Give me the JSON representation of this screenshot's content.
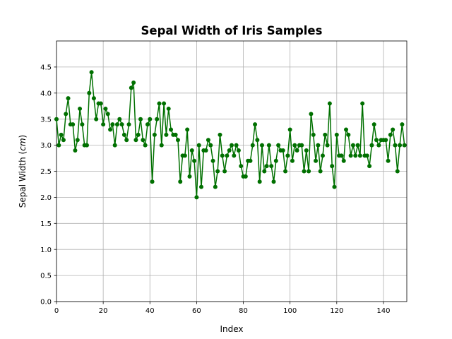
{
  "chart_data": {
    "type": "line",
    "title": "Sepal Width of Iris Samples",
    "xlabel": "Index",
    "ylabel": "Sepal Width (",
    "ylabel_unit": "cm",
    "ylabel_suffix": ")",
    "xlim": [
      0,
      150
    ],
    "ylim": [
      0,
      5.0
    ],
    "x_ticks": [
      0,
      20,
      40,
      60,
      80,
      100,
      120,
      140
    ],
    "x_tick_labels": [
      "0",
      "20",
      "40",
      "60",
      "80",
      "100",
      "120",
      "140"
    ],
    "y_ticks": [
      0.0,
      0.5,
      1.0,
      1.5,
      2.0,
      2.5,
      3.0,
      3.5,
      4.0,
      4.5
    ],
    "y_tick_labels": [
      "0.0",
      "0.5",
      "1.0",
      "1.5",
      "2.0",
      "2.5",
      "3.0",
      "3.5",
      "4.0",
      "4.5"
    ],
    "grid": true,
    "marker": "circle",
    "color": "#007000",
    "series": [
      {
        "values": [
          3.5,
          3.0,
          3.2,
          3.1,
          3.6,
          3.9,
          3.4,
          3.4,
          2.9,
          3.1,
          3.7,
          3.4,
          3.0,
          3.0,
          4.0,
          4.4,
          3.9,
          3.5,
          3.8,
          3.8,
          3.4,
          3.7,
          3.6,
          3.3,
          3.4,
          3.0,
          3.4,
          3.5,
          3.4,
          3.2,
          3.1,
          3.4,
          4.1,
          4.2,
          3.1,
          3.2,
          3.5,
          3.1,
          3.0,
          3.4,
          3.5,
          2.3,
          3.2,
          3.5,
          3.8,
          3.0,
          3.8,
          3.2,
          3.7,
          3.3,
          3.2,
          3.2,
          3.1,
          2.3,
          2.8,
          2.8,
          3.3,
          2.4,
          2.9,
          2.7,
          2.0,
          3.0,
          2.2,
          2.9,
          2.9,
          3.1,
          3.0,
          2.7,
          2.2,
          2.5,
          3.2,
          2.8,
          2.5,
          2.8,
          2.9,
          3.0,
          2.8,
          3.0,
          2.9,
          2.6,
          2.4,
          2.4,
          2.7,
          2.7,
          3.0,
          3.4,
          3.1,
          2.3,
          3.0,
          2.5,
          2.6,
          3.0,
          2.6,
          2.3,
          2.7,
          3.0,
          2.9,
          2.9,
          2.5,
          2.8,
          3.3,
          2.7,
          3.0,
          2.9,
          3.0,
          3.0,
          2.5,
          2.9,
          2.5,
          3.6,
          3.2,
          2.7,
          3.0,
          2.5,
          2.8,
          3.2,
          3.0,
          3.8,
          2.6,
          2.2,
          3.2,
          2.8,
          2.8,
          2.7,
          3.3,
          3.2,
          2.8,
          3.0,
          2.8,
          3.0,
          2.8,
          3.8,
          2.8,
          2.8,
          2.6,
          3.0,
          3.4,
          3.1,
          3.0,
          3.1,
          3.1,
          3.1,
          2.7,
          3.2,
          3.3,
          3.0,
          2.5,
          3.0,
          3.4,
          3.0
        ]
      }
    ]
  }
}
